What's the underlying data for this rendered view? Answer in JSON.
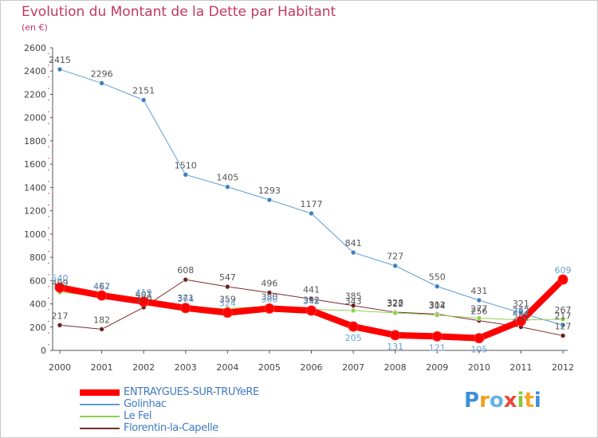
{
  "title": "Evolution du Montant de la Dette par Habitant",
  "subtitle": "(en €)",
  "logo": {
    "letters": [
      "P",
      "r",
      "o",
      "x",
      "i",
      "t",
      "i"
    ],
    "alt": "Proxiti"
  },
  "colors": {
    "title": "#c2385f",
    "axis": "#555555",
    "grid_tick": "#e05070",
    "entraygues": "#ff0000",
    "golinhac": "#5b9bd5",
    "le_fel": "#8fd14f",
    "florentin": "#7b2a2a"
  },
  "chart_data": {
    "type": "line",
    "title": "Evolution du Montant de la Dette par Habitant",
    "ylabel": "(en €)",
    "xlabel": "",
    "x": [
      "2000",
      "2001",
      "2002",
      "2003",
      "2004",
      "2005",
      "2006",
      "2007",
      "2008",
      "2009",
      "2010",
      "2011",
      "2012"
    ],
    "ylim": [
      0,
      2600
    ],
    "yticks": [
      0,
      200,
      400,
      600,
      800,
      1000,
      1200,
      1400,
      1600,
      1800,
      2000,
      2200,
      2400,
      2600
    ],
    "grid": false,
    "legend_position": "bottom-left",
    "series": [
      {
        "name": "ENTRAYGUES-SUR-TRUYeRE",
        "color": "#ff0000",
        "width": 8,
        "marker": "#ff0000",
        "labels": true,
        "label_color": "#6b9fd6",
        "values": [
          540,
          472,
          419,
          364,
          324,
          360,
          342,
          205,
          131,
          121,
          105,
          252,
          609
        ]
      },
      {
        "name": "Golinhac",
        "color": "#5b9bd5",
        "width": 1,
        "marker": "#3f7fc0",
        "labels": true,
        "label_color": "#555555",
        "values": [
          2415,
          2296,
          2151,
          1510,
          1405,
          1293,
          1177,
          841,
          727,
          550,
          431,
          321,
          217
        ]
      },
      {
        "name": "Le Fel",
        "color": "#8fd14f",
        "width": 1,
        "marker": "#8fd14f",
        "labels": true,
        "label_color": "#555555",
        "values": [
          499,
          467,
          401,
          371,
          359,
          380,
          352,
          343,
          322,
          304,
          277,
          262,
          267
        ]
      },
      {
        "name": "Florentin-la-Capelle",
        "color": "#7b2a2a",
        "width": 1,
        "marker": "#6b2020",
        "labels": true,
        "label_color": "#555555",
        "values": [
          217,
          182,
          370,
          608,
          547,
          496,
          441,
          385,
          328,
          312,
          256,
          201,
          127
        ]
      }
    ]
  }
}
